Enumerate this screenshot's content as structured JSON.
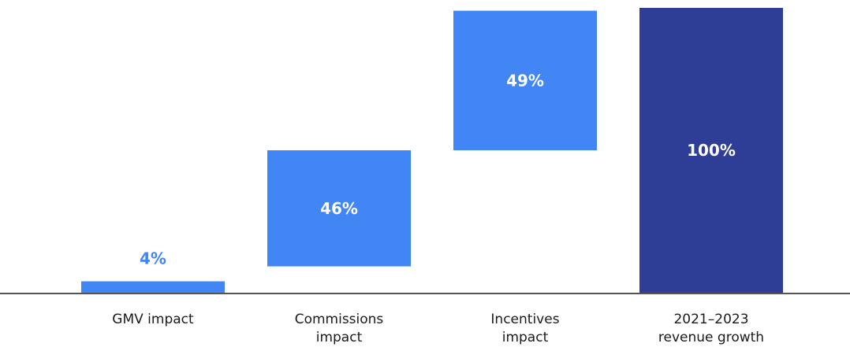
{
  "chart_data": {
    "type": "bar",
    "subtype": "waterfall",
    "categories": [
      "GMV impact",
      "Commissions impact",
      "Incentives impact",
      "2021–2023 revenue growth"
    ],
    "category_lines": [
      [
        "GMV impact"
      ],
      [
        "Commissions",
        "impact"
      ],
      [
        "Incentives",
        "impact"
      ],
      [
        "2021–2023",
        "revenue growth"
      ]
    ],
    "values": [
      4,
      46,
      49,
      100
    ],
    "labels": [
      "4%",
      "46%",
      "49%",
      "100%"
    ],
    "kinds": [
      "delta",
      "delta",
      "delta",
      "total"
    ],
    "title": "",
    "xlabel": "",
    "ylabel": "",
    "ylim": [
      0,
      100
    ],
    "grid": false,
    "legend": "none",
    "colors": {
      "delta": "#4285F4",
      "total": "#2E3E96",
      "label_outside": "#4285F4",
      "label_inside": "#ffffff",
      "baseline": "#1a1a1a"
    }
  }
}
